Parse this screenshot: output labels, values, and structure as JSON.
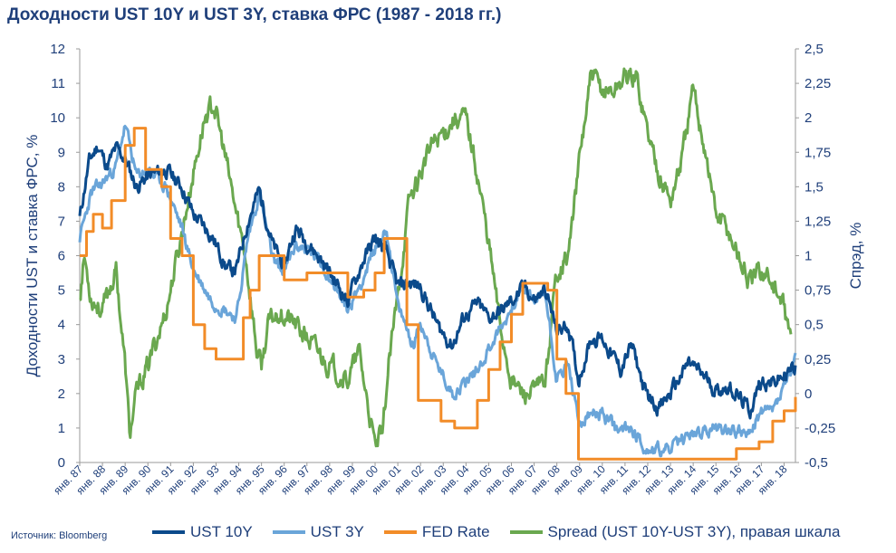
{
  "title": "Доходности UST 10Y и UST 3Y, ставка ФРС (1987 - 2018 гг.)",
  "source": "Источник: Bloomberg",
  "colors": {
    "ust10": "#0b4a8b",
    "ust3": "#6aa5d9",
    "fed": "#f28c28",
    "spread": "#6aa84f",
    "text": "#1f3f7a"
  },
  "chart_data": {
    "type": "line",
    "title": "Доходности UST 10Y и UST 3Y, ставка ФРС (1987 - 2018 гг.)",
    "ylabel": "Доходности UST и ставка ФРС, %",
    "y2label": "Спрэд, %",
    "ylim": [
      0,
      12
    ],
    "y2lim": [
      -0.5,
      2.5
    ],
    "yticks": [
      "0",
      "1",
      "2",
      "3",
      "4",
      "5",
      "6",
      "7",
      "8",
      "9",
      "10",
      "11",
      "12"
    ],
    "y2ticks": [
      "-0,5",
      "-0,25",
      "0",
      "0,25",
      "0,5",
      "0,75",
      "1",
      "1,25",
      "1,5",
      "1,75",
      "2",
      "2,25",
      "2,5"
    ],
    "xlim": [
      1987,
      2018.5
    ],
    "xticks": [
      "янв. 87",
      "янв. 88",
      "янв. 89",
      "янв. 90",
      "янв. 91",
      "янв. 92",
      "янв. 93",
      "янв. 94",
      "янв. 95",
      "янв. 96",
      "янв. 97",
      "янв. 98",
      "янв. 99",
      "янв. 00",
      "янв. 01",
      "янв. 02",
      "янв. 03",
      "янв. 04",
      "янв. 05",
      "янв. 06",
      "янв. 07",
      "янв. 08",
      "янв. 09",
      "янв. 10",
      "янв. 11",
      "янв. 12",
      "янв. 13",
      "янв. 14",
      "янв. 15",
      "янв. 16",
      "янв. 17",
      "янв. 18"
    ],
    "grid": false,
    "legend_position": "bottom",
    "series": [
      {
        "name": "UST 10Y",
        "axis": "left",
        "x": [
          1987,
          1987.4,
          1987.8,
          1988.2,
          1988.6,
          1989,
          1989.5,
          1990,
          1990.8,
          1991.5,
          1992,
          1992.8,
          1993.5,
          1993.9,
          1994.4,
          1994.9,
          1995.5,
          1996,
          1996.5,
          1997,
          1997.5,
          1998,
          1998.8,
          1999.5,
          2000,
          2000.5,
          2001,
          2001.5,
          2002,
          2002.8,
          2003.4,
          2003.9,
          2004.5,
          2005,
          2005.6,
          2006.3,
          2006.6,
          2007,
          2007.5,
          2008,
          2008.5,
          2008.95,
          2009.5,
          2010,
          2010.8,
          2011.3,
          2011.9,
          2012.5,
          2013,
          2013.8,
          2014.5,
          2015,
          2015.6,
          2016.5,
          2017,
          2017.5,
          2018,
          2018.5
        ],
        "y": [
          7.1,
          8.7,
          9.2,
          8.6,
          9.1,
          8.8,
          8.0,
          8.3,
          8.5,
          8.0,
          7.2,
          6.6,
          5.6,
          5.6,
          7.0,
          7.9,
          6.3,
          5.7,
          6.8,
          6.4,
          6.0,
          5.5,
          4.7,
          5.9,
          6.5,
          6.1,
          5.1,
          5.2,
          5.1,
          3.9,
          3.4,
          4.2,
          4.6,
          4.2,
          4.4,
          4.9,
          5.1,
          4.7,
          5.0,
          3.8,
          4.0,
          2.4,
          3.6,
          3.6,
          2.7,
          3.4,
          2.0,
          1.6,
          2.0,
          2.9,
          2.5,
          2.1,
          2.2,
          1.5,
          2.4,
          2.3,
          2.5,
          2.8
        ]
      },
      {
        "name": "UST 3Y",
        "axis": "left",
        "x": [
          1987,
          1987.5,
          1988,
          1988.6,
          1989,
          1989.5,
          1990,
          1990.8,
          1991.5,
          1992,
          1992.8,
          1993.5,
          1993.9,
          1994.4,
          1994.9,
          1995.5,
          1996,
          1996.5,
          1997,
          1997.6,
          1998,
          1998.8,
          1999.5,
          2000,
          2000.5,
          2001,
          2001.7,
          2002,
          2002.6,
          2003.4,
          2003.9,
          2004.5,
          2005,
          2005.8,
          2006.3,
          2006.6,
          2007,
          2007.5,
          2008,
          2008.5,
          2008.95,
          2009.5,
          2010,
          2010.7,
          2011.3,
          2011.9,
          2012.5,
          2013,
          2013.8,
          2014.5,
          2015,
          2015.6,
          2016.5,
          2017,
          2017.5,
          2018,
          2018.5
        ],
        "y": [
          6.5,
          7.8,
          8.1,
          8.6,
          9.8,
          8.3,
          8.5,
          8.0,
          6.8,
          5.6,
          4.7,
          4.4,
          4.2,
          6.5,
          7.8,
          5.9,
          5.5,
          6.3,
          6.2,
          5.8,
          5.4,
          4.4,
          5.4,
          6.2,
          6.8,
          4.5,
          3.4,
          4.1,
          3.0,
          2.0,
          2.3,
          2.7,
          3.3,
          4.2,
          4.9,
          5.0,
          4.7,
          4.9,
          2.4,
          2.9,
          1.1,
          1.4,
          1.4,
          0.9,
          1.0,
          0.4,
          0.35,
          0.4,
          0.8,
          0.9,
          1.0,
          1.0,
          0.8,
          1.5,
          1.5,
          2.2,
          2.9
        ]
      },
      {
        "name": "FED Rate",
        "axis": "left",
        "x": [
          1987,
          1987.3,
          1987.6,
          1988,
          1988.4,
          1989,
          1989.4,
          1989.9,
          1990.6,
          1991,
          1991.5,
          1992,
          1992.5,
          1993,
          1993.9,
          1994.2,
          1994.5,
          1994.9,
          1995.5,
          1996,
          1996.5,
          1997,
          1998,
          1998.8,
          1999,
          1999.5,
          2000,
          2000.4,
          2000.9,
          2001.4,
          2001.9,
          2002.9,
          2003.5,
          2004,
          2004.5,
          2005,
          2005.5,
          2006,
          2006.5,
          2007,
          2007.6,
          2008,
          2008.4,
          2008.95,
          2009.5,
          2015.9,
          2016.9,
          2017.5,
          2018,
          2018.5
        ],
        "y": [
          6.0,
          6.7,
          7.2,
          6.8,
          7.6,
          9.2,
          9.7,
          8.5,
          8.0,
          6.5,
          6.0,
          4.0,
          3.3,
          3.0,
          3.0,
          4.2,
          5.0,
          6.0,
          6.0,
          5.3,
          5.3,
          5.5,
          5.5,
          4.8,
          4.8,
          5.0,
          5.5,
          6.5,
          6.5,
          4.0,
          1.8,
          1.2,
          1.0,
          1.0,
          1.8,
          2.7,
          3.5,
          4.3,
          5.2,
          5.2,
          5.0,
          3.0,
          2.0,
          0.1,
          0.1,
          0.4,
          0.6,
          1.2,
          1.5,
          1.9
        ]
      },
      {
        "name": "Spread (UST 10Y-UST 3Y), правая шкала",
        "axis": "right",
        "x": [
          1987,
          1987.2,
          1987.5,
          1988,
          1988.6,
          1989,
          1989.2,
          1989.5,
          1990,
          1990.8,
          1991.3,
          1992,
          1992.5,
          1992.9,
          1993.3,
          1993.9,
          1994.3,
          1994.8,
          1995,
          1995.3,
          1995.8,
          1996.5,
          1997,
          1997.5,
          1998,
          1998.8,
          1999.3,
          2000,
          2000.3,
          2000.6,
          2001,
          2001.5,
          2002,
          2002.5,
          2003,
          2003.5,
          2004,
          2004.5,
          2005,
          2005.5,
          2006,
          2006.5,
          2007,
          2007.5,
          2008,
          2008.5,
          2009,
          2009.5,
          2010,
          2010.5,
          2011,
          2011.5,
          2012,
          2012.5,
          2013,
          2013.5,
          2014,
          2014.5,
          2015,
          2015.5,
          2016,
          2016.5,
          2017,
          2017.5,
          2018,
          2018.3
        ],
        "y": [
          0.7,
          1.0,
          0.7,
          0.6,
          0.9,
          0.2,
          -0.3,
          0.0,
          0.2,
          0.6,
          1.0,
          1.6,
          2.0,
          2.1,
          1.8,
          1.3,
          1.0,
          0.3,
          0.2,
          0.5,
          0.6,
          0.5,
          0.4,
          0.3,
          0.2,
          0.1,
          0.3,
          -0.4,
          -0.3,
          0.2,
          0.7,
          1.4,
          1.6,
          1.8,
          1.9,
          2.0,
          2.0,
          1.6,
          1.1,
          0.5,
          0.1,
          0.0,
          0.0,
          0.1,
          0.9,
          1.0,
          1.7,
          2.3,
          2.2,
          2.2,
          2.3,
          2.3,
          1.9,
          1.6,
          1.4,
          1.7,
          2.2,
          1.8,
          1.3,
          1.2,
          1.0,
          0.8,
          0.9,
          0.8,
          0.6,
          0.4
        ]
      }
    ]
  }
}
